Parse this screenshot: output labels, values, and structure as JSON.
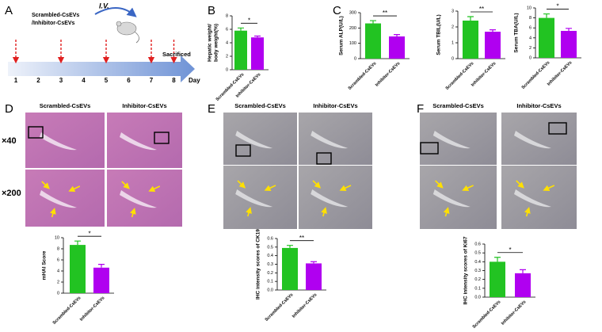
{
  "panel_labels": [
    "A",
    "B",
    "C",
    "D",
    "E",
    "F"
  ],
  "timeline": {
    "days": [
      1,
      2,
      3,
      4,
      5,
      6,
      7,
      8
    ],
    "day_label": "Day",
    "injection_days": [
      1,
      3,
      5,
      7,
      8
    ],
    "treatment": [
      "Scrambled-CsEVs",
      "/Inhibitor-CsEVs"
    ],
    "route": "I.V.",
    "end": "Sacrificed"
  },
  "images": {
    "D": {
      "columns": [
        "Scrambled-CsEVs",
        "Inhibitor-CsEVs"
      ],
      "rows": [
        "×40",
        "×200"
      ]
    },
    "E": {
      "columns": [
        "Scrambled-CsEVs",
        "Inhibitor-CsEVs"
      ]
    },
    "F": {
      "columns": [
        "Scrambled-CsEVs",
        "Inhibitor-CsEVs"
      ]
    }
  },
  "chart_data": [
    {
      "type": "bar",
      "y_label": [
        "Hepatic weight/",
        "body weight(%)"
      ],
      "categories": [
        "Scrambled-CsEVs",
        "Inhibitor-CsEVs"
      ],
      "values": [
        5.8,
        4.8
      ],
      "errors": [
        0.4,
        0.2
      ],
      "colors": [
        "#22c322",
        "#b000f0"
      ],
      "ylim": [
        0,
        8
      ],
      "yticks": [
        0,
        2,
        4,
        6,
        8
      ],
      "significance": "*"
    },
    {
      "type": "bar",
      "y_label": "Serum ALP(U/L)",
      "categories": [
        "Scrambled-CsEVs",
        "Inhibitor-CsEVs"
      ],
      "values": [
        230,
        145
      ],
      "errors": [
        18,
        12
      ],
      "colors": [
        "#22c322",
        "#b000f0"
      ],
      "ylim": [
        0,
        300
      ],
      "yticks": [
        0,
        100,
        200,
        300
      ],
      "significance": "**"
    },
    {
      "type": "bar",
      "y_label": "Serum TBIL(U/L)",
      "categories": [
        "Scrambled-CsEVs",
        "Inhibitor-CsEVs"
      ],
      "values": [
        2.4,
        1.7
      ],
      "errors": [
        0.25,
        0.12
      ],
      "colors": [
        "#22c322",
        "#b000f0"
      ],
      "ylim": [
        0,
        3
      ],
      "yticks": [
        0,
        1,
        2,
        3
      ],
      "significance": "**"
    },
    {
      "type": "bar",
      "y_label": "Serum TBA(U/L)",
      "categories": [
        "Scrambled-CsEVs",
        "Inhibitor-CsEVs"
      ],
      "values": [
        8.0,
        5.4
      ],
      "errors": [
        0.8,
        0.5
      ],
      "colors": [
        "#22c322",
        "#b000f0"
      ],
      "ylim": [
        0,
        10
      ],
      "yticks": [
        0,
        2,
        4,
        6,
        8,
        10
      ],
      "significance": "*"
    },
    {
      "type": "bar",
      "y_label": "mHAI Score",
      "categories": [
        "Scrambled-CsEVs",
        "Inhibitor-CsEVs"
      ],
      "values": [
        8.7,
        4.6
      ],
      "errors": [
        0.7,
        0.6
      ],
      "colors": [
        "#22c322",
        "#b000f0"
      ],
      "ylim": [
        0,
        10
      ],
      "yticks": [
        0,
        2,
        4,
        6,
        8,
        10
      ],
      "significance": "*"
    },
    {
      "type": "bar",
      "y_label": "IHC intensity scores of CK19",
      "categories": [
        "Scrambled-CsEVs",
        "Inhibitor-CsEVs"
      ],
      "values": [
        0.49,
        0.31
      ],
      "errors": [
        0.03,
        0.02
      ],
      "colors": [
        "#22c322",
        "#b000f0"
      ],
      "ylim": [
        0,
        0.6
      ],
      "yticks": [
        {
          "value": 0,
          "label": "0.0"
        },
        0.1,
        0.2,
        0.3,
        0.4,
        0.5,
        0.6
      ],
      "significance": "**"
    },
    {
      "type": "bar",
      "y_label": "IHC intensity scores of Ki67",
      "categories": [
        "Scrambled-CsEVs",
        "Inhibitor-CsEVs"
      ],
      "values": [
        0.4,
        0.27
      ],
      "errors": [
        0.05,
        0.04
      ],
      "colors": [
        "#22c322",
        "#b000f0"
      ],
      "ylim": [
        0,
        0.6
      ],
      "yticks": [
        {
          "value": 0,
          "label": "0.0"
        },
        0.1,
        0.2,
        0.3,
        0.4,
        0.5,
        0.6
      ],
      "significance": "*"
    }
  ]
}
